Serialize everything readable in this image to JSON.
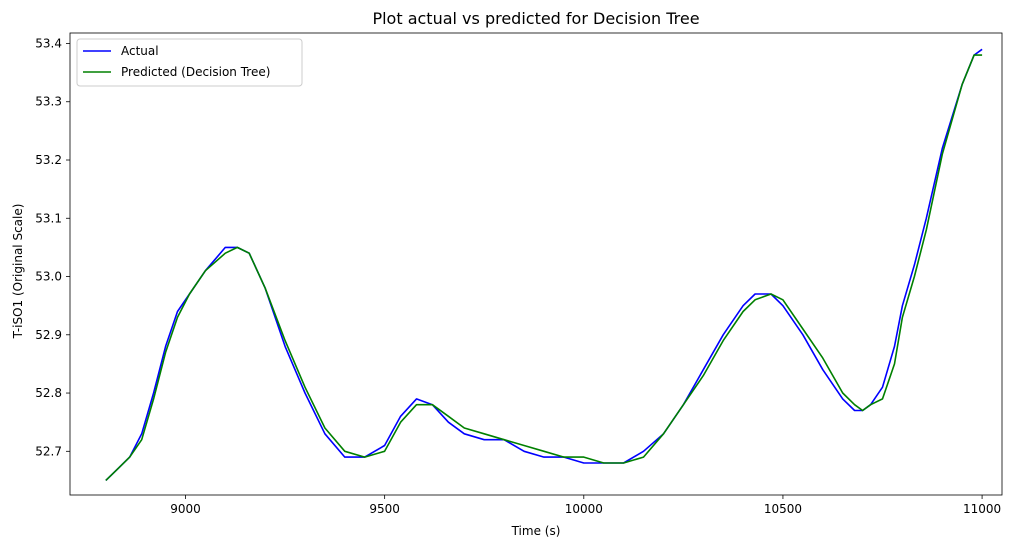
{
  "chart_data": {
    "type": "line",
    "title": "Plot actual vs predicted for Decision Tree",
    "xlabel": "Time (s)",
    "ylabel": "T-iSO1 (Original Scale)",
    "xlim": [
      8710,
      11050
    ],
    "ylim": [
      52.625,
      53.418
    ],
    "xticks": [
      9000,
      9500,
      10000,
      10500,
      11000
    ],
    "yticks": [
      52.7,
      52.8,
      52.9,
      53.0,
      53.1,
      53.2,
      53.3,
      53.4
    ],
    "ytick_labels": [
      "52.7",
      "52.8",
      "52.9",
      "53.0",
      "53.1",
      "53.2",
      "53.3",
      "53.4"
    ],
    "grid": false,
    "legend": "top-left",
    "series": [
      {
        "name": "Actual",
        "color": "#0000ff",
        "x": [
          8800,
          8830,
          8860,
          8890,
          8920,
          8950,
          8980,
          9010,
          9050,
          9100,
          9130,
          9160,
          9200,
          9250,
          9300,
          9350,
          9400,
          9450,
          9500,
          9540,
          9580,
          9620,
          9660,
          9700,
          9750,
          9800,
          9850,
          9900,
          9950,
          10000,
          10050,
          10100,
          10150,
          10200,
          10250,
          10300,
          10350,
          10400,
          10430,
          10470,
          10500,
          10550,
          10600,
          10650,
          10680,
          10700,
          10720,
          10750,
          10780,
          10800,
          10830,
          10860,
          10900,
          10950,
          10980,
          11000
        ],
        "y": [
          52.65,
          52.67,
          52.69,
          52.73,
          52.8,
          52.88,
          52.94,
          52.97,
          53.01,
          53.05,
          53.05,
          53.04,
          52.98,
          52.88,
          52.8,
          52.73,
          52.69,
          52.69,
          52.71,
          52.76,
          52.79,
          52.78,
          52.75,
          52.73,
          52.72,
          52.72,
          52.7,
          52.69,
          52.69,
          52.68,
          52.68,
          52.68,
          52.7,
          52.73,
          52.78,
          52.84,
          52.9,
          52.95,
          52.97,
          52.97,
          52.95,
          52.9,
          52.84,
          52.79,
          52.77,
          52.77,
          52.78,
          52.81,
          52.88,
          52.95,
          53.02,
          53.1,
          53.22,
          53.33,
          53.38,
          53.39
        ]
      },
      {
        "name": "Predicted (Decision Tree)",
        "color": "#008000",
        "x": [
          8800,
          8830,
          8860,
          8890,
          8920,
          8950,
          8980,
          9010,
          9050,
          9100,
          9130,
          9160,
          9200,
          9250,
          9300,
          9350,
          9400,
          9450,
          9500,
          9540,
          9580,
          9620,
          9660,
          9700,
          9750,
          9800,
          9850,
          9900,
          9950,
          10000,
          10050,
          10100,
          10150,
          10200,
          10250,
          10300,
          10350,
          10400,
          10430,
          10470,
          10500,
          10550,
          10600,
          10650,
          10680,
          10700,
          10720,
          10750,
          10780,
          10800,
          10830,
          10860,
          10900,
          10950,
          10980,
          11000
        ],
        "y": [
          52.65,
          52.67,
          52.69,
          52.72,
          52.79,
          52.87,
          52.93,
          52.97,
          53.01,
          53.04,
          53.05,
          53.04,
          52.98,
          52.89,
          52.81,
          52.74,
          52.7,
          52.69,
          52.7,
          52.75,
          52.78,
          52.78,
          52.76,
          52.74,
          52.73,
          52.72,
          52.71,
          52.7,
          52.69,
          52.69,
          52.68,
          52.68,
          52.69,
          52.73,
          52.78,
          52.83,
          52.89,
          52.94,
          52.96,
          52.97,
          52.96,
          52.91,
          52.86,
          52.8,
          52.78,
          52.77,
          52.78,
          52.79,
          52.85,
          52.93,
          53.0,
          53.08,
          53.21,
          53.33,
          53.38,
          53.38
        ]
      }
    ]
  }
}
